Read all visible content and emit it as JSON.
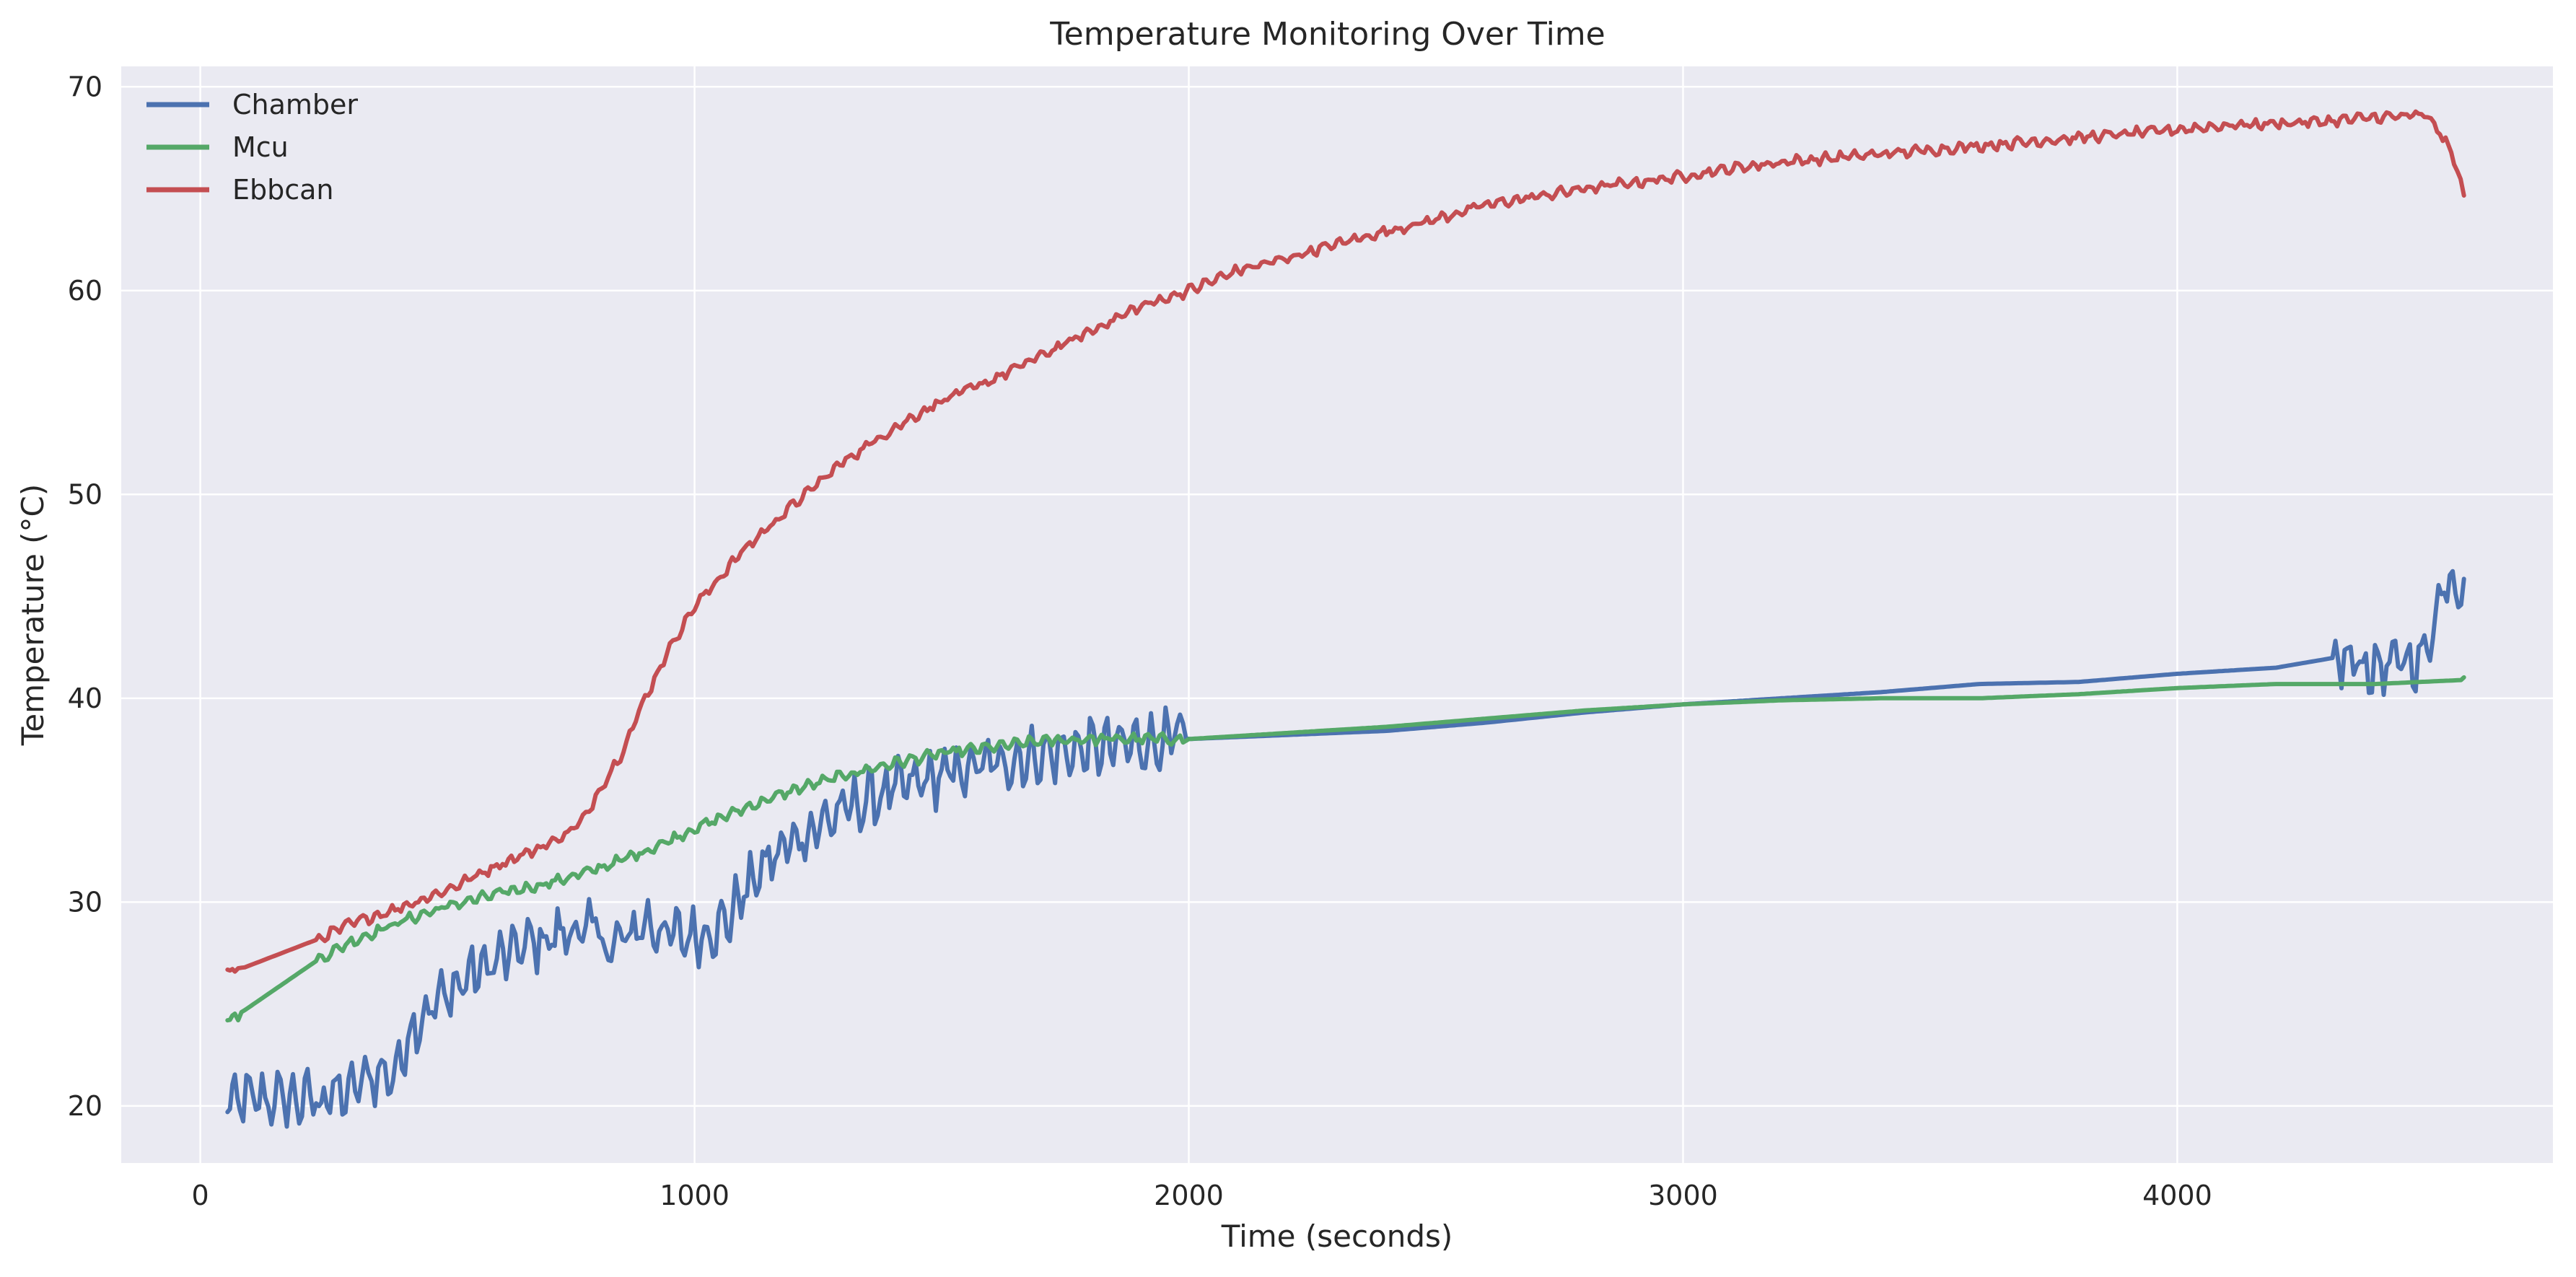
{
  "chart_data": {
    "type": "line",
    "title": "Temperature Monitoring Over Time",
    "xlabel": "Time (seconds)",
    "ylabel": "Temperature (°C)",
    "xlim": [
      -160,
      4760
    ],
    "ylim": [
      17.2,
      71
    ],
    "xticks": [
      0,
      1000,
      2000,
      3000,
      4000
    ],
    "yticks": [
      20,
      30,
      40,
      50,
      60,
      70
    ],
    "grid": true,
    "legend_position": "top-left",
    "series": [
      {
        "name": "Chamber",
        "color": "#4c72b0",
        "noise": 0.8,
        "points": [
          [
            55,
            20.2
          ],
          [
            70,
            20.0
          ],
          [
            80,
            20.3
          ],
          [
            100,
            20.3
          ],
          [
            150,
            20.35
          ],
          [
            200,
            20.3
          ],
          [
            240,
            20.4
          ],
          [
            245,
            19.9
          ],
          [
            250,
            20.5
          ],
          [
            300,
            20.6
          ],
          [
            320,
            21.0
          ],
          [
            340,
            21.6
          ],
          [
            360,
            21.4
          ],
          [
            380,
            21.8
          ],
          [
            390,
            21.2
          ],
          [
            420,
            23.5
          ],
          [
            450,
            24.5
          ],
          [
            500,
            25.5
          ],
          [
            550,
            26.5
          ],
          [
            600,
            27.1
          ],
          [
            650,
            27.8
          ],
          [
            700,
            28.2
          ],
          [
            740,
            28.5
          ],
          [
            760,
            28.8
          ],
          [
            780,
            28.0
          ],
          [
            800,
            29.5
          ],
          [
            820,
            27.5
          ],
          [
            860,
            28.3
          ],
          [
            900,
            29.0
          ],
          [
            940,
            28.5
          ],
          [
            980,
            28.3
          ],
          [
            1020,
            28.5
          ],
          [
            1060,
            28.9
          ],
          [
            1100,
            30.5
          ],
          [
            1150,
            32.0
          ],
          [
            1200,
            33.0
          ],
          [
            1300,
            34.5
          ],
          [
            1400,
            35.5
          ],
          [
            1500,
            36.2
          ],
          [
            1600,
            36.8
          ],
          [
            1700,
            37.2
          ],
          [
            1800,
            37.5
          ],
          [
            1900,
            37.8
          ],
          [
            2000,
            38.0
          ],
          [
            2200,
            38.2
          ],
          [
            2400,
            38.4
          ],
          [
            2600,
            38.8
          ],
          [
            2800,
            39.3
          ],
          [
            3000,
            39.7
          ],
          [
            3200,
            40.0
          ],
          [
            3400,
            40.3
          ],
          [
            3600,
            40.7
          ],
          [
            3800,
            40.8
          ],
          [
            4000,
            41.2
          ],
          [
            4200,
            41.5
          ],
          [
            4320,
            42.0
          ],
          [
            4400,
            41.5
          ],
          [
            4500,
            42.0
          ],
          [
            4540,
            45.8
          ],
          [
            4580,
            45.8
          ]
        ]
      },
      {
        "name": "Mcu",
        "color": "#55a868",
        "noise": 0.15,
        "points": [
          [
            55,
            24.1
          ],
          [
            70,
            24.4
          ],
          [
            90,
            24.7
          ],
          [
            240,
            27.2
          ],
          [
            300,
            28.0
          ],
          [
            400,
            29.0
          ],
          [
            500,
            29.8
          ],
          [
            600,
            30.4
          ],
          [
            700,
            30.9
          ],
          [
            800,
            31.6
          ],
          [
            900,
            32.5
          ],
          [
            1000,
            33.6
          ],
          [
            1100,
            34.6
          ],
          [
            1200,
            35.5
          ],
          [
            1300,
            36.2
          ],
          [
            1400,
            36.8
          ],
          [
            1500,
            37.3
          ],
          [
            1600,
            37.6
          ],
          [
            1700,
            37.9
          ],
          [
            1800,
            38.0
          ],
          [
            1900,
            38.0
          ],
          [
            2000,
            38.0
          ],
          [
            2200,
            38.3
          ],
          [
            2400,
            38.6
          ],
          [
            2600,
            39.0
          ],
          [
            2800,
            39.4
          ],
          [
            3000,
            39.7
          ],
          [
            3200,
            39.9
          ],
          [
            3400,
            40.0
          ],
          [
            3600,
            40.0
          ],
          [
            3800,
            40.2
          ],
          [
            4000,
            40.5
          ],
          [
            4200,
            40.7
          ],
          [
            4400,
            40.7
          ],
          [
            4580,
            40.9
          ]
        ]
      },
      {
        "name": "Ebbcan",
        "color": "#c44e52",
        "noise": 0.15,
        "points": [
          [
            55,
            26.5
          ],
          [
            70,
            26.7
          ],
          [
            90,
            26.8
          ],
          [
            240,
            28.2
          ],
          [
            300,
            28.9
          ],
          [
            400,
            29.7
          ],
          [
            500,
            30.6
          ],
          [
            600,
            31.8
          ],
          [
            700,
            32.8
          ],
          [
            750,
            33.5
          ],
          [
            780,
            34.2
          ],
          [
            800,
            35.2
          ],
          [
            850,
            37.2
          ],
          [
            900,
            40.0
          ],
          [
            950,
            42.5
          ],
          [
            1000,
            44.5
          ],
          [
            1100,
            47.3
          ],
          [
            1200,
            49.5
          ],
          [
            1300,
            51.6
          ],
          [
            1400,
            53.2
          ],
          [
            1500,
            54.6
          ],
          [
            1600,
            55.6
          ],
          [
            1700,
            56.8
          ],
          [
            1800,
            58.0
          ],
          [
            1900,
            59.2
          ],
          [
            2000,
            60.0
          ],
          [
            2100,
            61.0
          ],
          [
            2200,
            61.6
          ],
          [
            2300,
            62.3
          ],
          [
            2400,
            62.9
          ],
          [
            2500,
            63.5
          ],
          [
            2600,
            64.2
          ],
          [
            2700,
            64.6
          ],
          [
            2800,
            65.0
          ],
          [
            2900,
            65.3
          ],
          [
            3000,
            65.6
          ],
          [
            3100,
            66.0
          ],
          [
            3200,
            66.3
          ],
          [
            3300,
            66.5
          ],
          [
            3400,
            66.7
          ],
          [
            3500,
            66.9
          ],
          [
            3600,
            67.1
          ],
          [
            3700,
            67.3
          ],
          [
            3800,
            67.5
          ],
          [
            3900,
            67.7
          ],
          [
            4000,
            67.9
          ],
          [
            4100,
            68.1
          ],
          [
            4200,
            68.2
          ],
          [
            4300,
            68.3
          ],
          [
            4400,
            68.5
          ],
          [
            4500,
            68.6
          ],
          [
            4520,
            68.2
          ],
          [
            4560,
            66.5
          ],
          [
            4580,
            64.6
          ]
        ]
      }
    ]
  }
}
